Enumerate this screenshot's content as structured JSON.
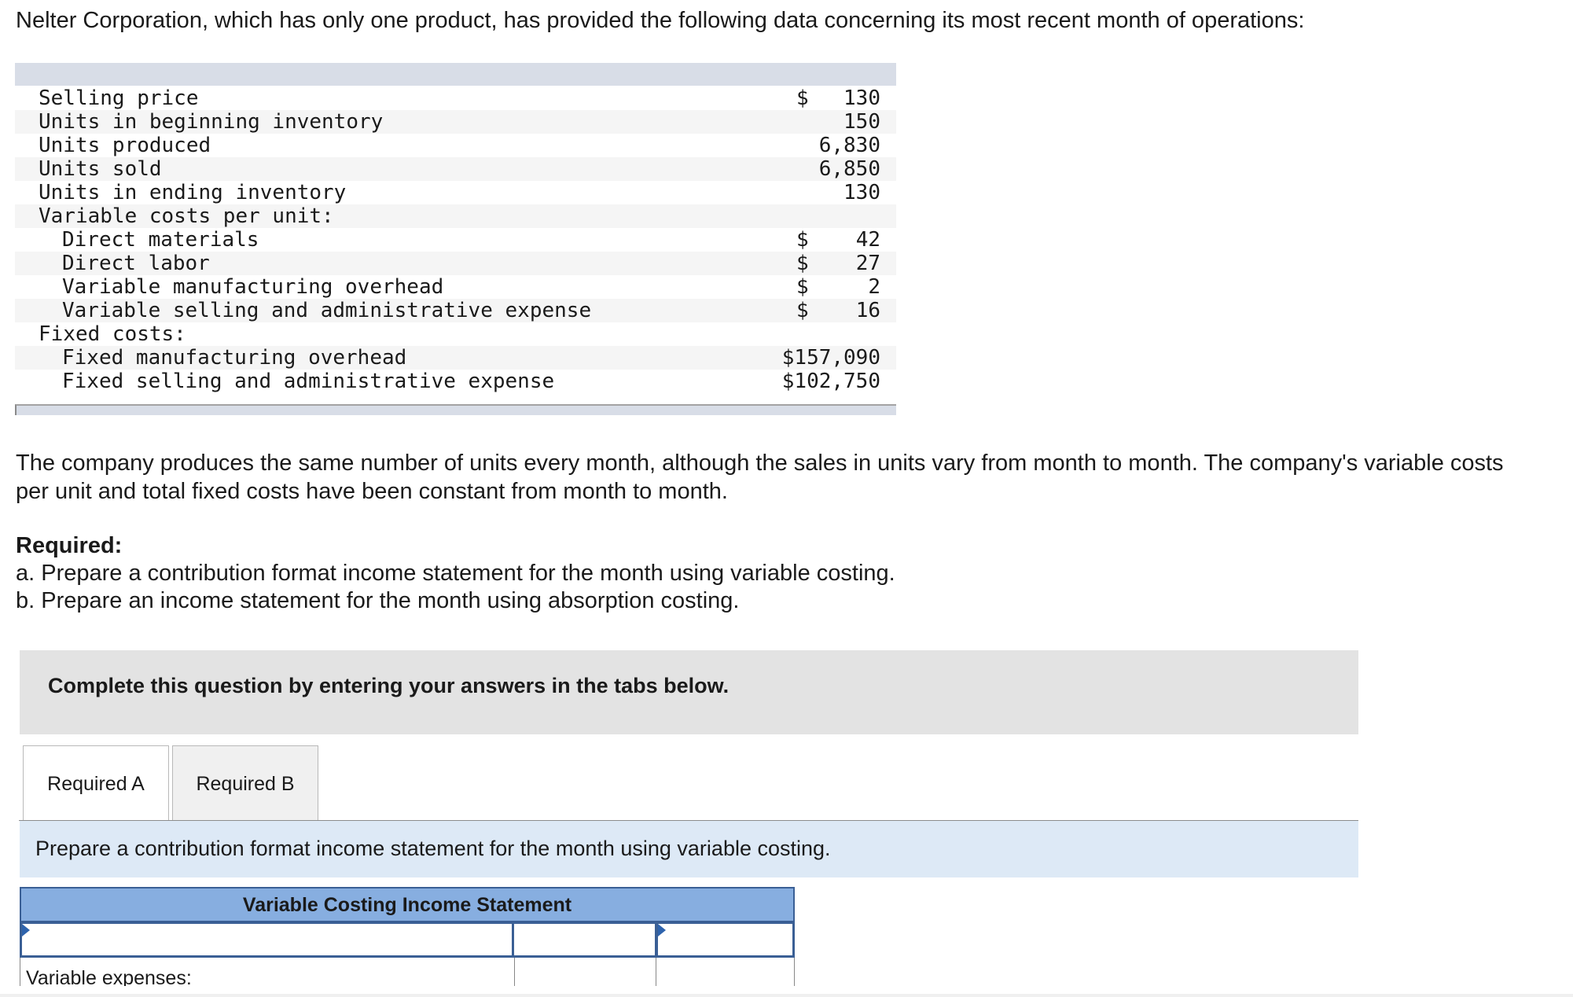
{
  "intro": "Nelter Corporation, which has only one product, has provided the following data concerning its most recent month of operations:",
  "data_rows": [
    {
      "label": "Selling price",
      "dollar": "$",
      "value": "130"
    },
    {
      "label": "Units in beginning inventory",
      "dollar": "",
      "value": "150"
    },
    {
      "label": "Units produced",
      "dollar": "",
      "value": "6,830"
    },
    {
      "label": "Units sold",
      "dollar": "",
      "value": "6,850"
    },
    {
      "label": "Units in ending inventory",
      "dollar": "",
      "value": "130"
    },
    {
      "label": "Variable costs per unit:",
      "dollar": "",
      "value": ""
    },
    {
      "label": "Direct materials",
      "dollar": "$",
      "value": "42"
    },
    {
      "label": "Direct labor",
      "dollar": "$",
      "value": "27"
    },
    {
      "label": "Variable manufacturing overhead",
      "dollar": "$",
      "value": "2"
    },
    {
      "label": "Variable selling and administrative expense",
      "dollar": "$",
      "value": "16"
    },
    {
      "label": "Fixed costs:",
      "dollar": "",
      "value": ""
    },
    {
      "label": "Fixed manufacturing overhead",
      "dollar": "",
      "value": "$157,090"
    },
    {
      "label": "Fixed selling and administrative expense",
      "dollar": "",
      "value": "$102,750"
    }
  ],
  "paragraph": "The company produces the same number of units every month, although the sales in units vary from month to month. The company's variable costs per unit and total fixed costs have been constant from month to month.",
  "required": {
    "title": "Required:",
    "a": "a. Prepare a contribution format income statement for the month using variable costing.",
    "b": "b. Prepare an income statement for the month using absorption costing."
  },
  "instruction": "Complete this question by entering your answers in the tabs below.",
  "tabs": [
    "Required A",
    "Required B"
  ],
  "prompt": "Prepare a contribution format income statement for the month using variable costing.",
  "statement": {
    "title": "Variable Costing Income Statement",
    "row2_label": "Variable expenses:"
  }
}
